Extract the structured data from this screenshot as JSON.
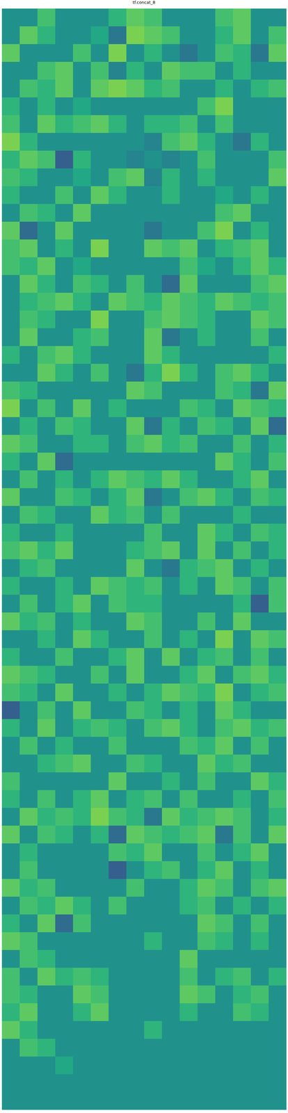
{
  "chart_data": {
    "type": "heatmap",
    "title": "tf.concat_8",
    "color": "viridis",
    "tick_labels": false,
    "value_range": [
      -1,
      1
    ],
    "cells": [
      [
        0,
        0,
        0.4,
        0,
        0,
        0,
        0.3,
        0.5,
        0.4,
        0,
        0,
        0,
        0.4,
        0.5,
        0,
        0
      ],
      [
        0,
        0.5,
        0.3,
        0,
        0,
        0.2,
        -0.2,
        0.6,
        0.5,
        0.4,
        0,
        0,
        0.3,
        0.5,
        0,
        0.4
      ],
      [
        0.5,
        0,
        0,
        0,
        0.4,
        0,
        0.6,
        0,
        0.3,
        0,
        -0.2,
        0,
        0.4,
        0.3,
        -0.2,
        0.5
      ],
      [
        0,
        0,
        0.4,
        0.5,
        0,
        0.4,
        -0.1,
        0.3,
        0,
        0.5,
        0.4,
        0.4,
        0,
        0.3,
        0,
        0
      ],
      [
        0,
        0.4,
        0.3,
        0.5,
        0,
        0.5,
        0.6,
        0.5,
        0.3,
        0.4,
        0,
        0,
        0.3,
        0,
        0.3,
        0.4
      ],
      [
        0.3,
        0,
        0.3,
        0,
        0.2,
        0,
        0,
        0,
        0,
        0,
        0,
        0.4,
        0.6,
        0,
        0,
        0
      ],
      [
        0.4,
        0,
        0.5,
        0.3,
        0.4,
        0.5,
        0.3,
        0,
        0.3,
        0.3,
        0.4,
        0,
        0.4,
        0,
        0,
        0
      ],
      [
        0.6,
        0.3,
        0,
        0,
        0,
        0,
        0,
        0,
        -0.1,
        0.4,
        0.5,
        0.3,
        0,
        -0.2,
        0.3,
        0
      ],
      [
        0.3,
        0.5,
        0.4,
        -0.4,
        0.3,
        0,
        0,
        -0.1,
        0,
        -0.1,
        0,
        0.4,
        0,
        0,
        0,
        0.4
      ],
      [
        0.4,
        0.3,
        0,
        0,
        0.2,
        0,
        0.4,
        0.5,
        -0.1,
        0.3,
        0,
        0.3,
        0,
        0,
        0,
        0.5
      ],
      [
        0.3,
        0,
        0,
        0.4,
        0,
        0.5,
        0.3,
        0,
        0,
        0.3,
        0,
        0,
        0.2,
        0,
        0.3,
        0
      ],
      [
        0,
        0.4,
        0.3,
        0,
        0.5,
        0,
        0,
        0,
        0,
        0,
        0,
        0,
        0.4,
        0.5,
        0,
        0
      ],
      [
        0.5,
        -0.3,
        0,
        0.5,
        0,
        0,
        0,
        0,
        -0.2,
        0,
        0,
        0.4,
        0.6,
        0,
        0.3,
        0
      ],
      [
        0.4,
        0.5,
        0,
        0.3,
        0,
        0.6,
        0,
        0,
        0.5,
        0.4,
        0.5,
        0,
        0.3,
        0.4,
        0.5,
        0
      ],
      [
        0.4,
        0.3,
        0.5,
        0,
        0.2,
        0,
        0,
        0,
        0,
        0,
        0.4,
        0.2,
        0,
        0.3,
        0.5,
        0.3
      ],
      [
        0,
        0.5,
        0.3,
        0,
        0.4,
        0.3,
        0,
        0.4,
        0,
        -0.3,
        0.5,
        0,
        0,
        0,
        0.4,
        0.5
      ],
      [
        0,
        0.3,
        0.4,
        0.5,
        0.3,
        0,
        0.5,
        0.4,
        0.3,
        0.5,
        0.4,
        0.3,
        0.5,
        0.4,
        0.3,
        0.4
      ],
      [
        0,
        0.4,
        0.3,
        0,
        0,
        0.6,
        0,
        0,
        0.4,
        0.5,
        0.4,
        0.3,
        0,
        0,
        0.5,
        0.4
      ],
      [
        0,
        0.5,
        0,
        0,
        0.3,
        0.4,
        0,
        0,
        0.5,
        -0.2,
        0,
        0.3,
        0,
        0,
        0.4,
        0
      ],
      [
        0.3,
        0,
        0.4,
        0.5,
        0.3,
        0,
        0,
        0,
        0.5,
        0.3,
        0,
        0,
        0,
        0,
        0,
        0.3
      ],
      [
        0,
        0,
        0.5,
        0.3,
        0,
        0.4,
        0,
        -0.2,
        0.3,
        0.6,
        0.3,
        0,
        0.4,
        0.5,
        0.3,
        0
      ],
      [
        0.4,
        0.3,
        0,
        0,
        0,
        0,
        0,
        0.5,
        0.4,
        0,
        0,
        0,
        0.4,
        0.3,
        -0.2,
        0.5
      ],
      [
        0.6,
        0,
        0.4,
        0,
        0.5,
        0,
        0.3,
        0,
        0,
        0,
        0.4,
        0.3,
        0,
        0.5,
        0.4,
        0.3
      ],
      [
        0,
        0.3,
        0,
        0.4,
        0.3,
        0,
        0,
        0.5,
        -0.2,
        0.3,
        0,
        0.4,
        0.3,
        0,
        0.5,
        -0.3
      ],
      [
        0.5,
        0.4,
        0,
        0,
        0.3,
        0.3,
        0,
        0.4,
        0.5,
        0.3,
        0.4,
        0,
        0,
        0.4,
        0,
        0.3
      ],
      [
        0.3,
        0,
        0.5,
        -0.3,
        0,
        0,
        0,
        0,
        0,
        0,
        0,
        0,
        0.5,
        0.3,
        0,
        0.4
      ],
      [
        0,
        0.4,
        0,
        0.3,
        0,
        0.3,
        0.5,
        0.4,
        0.3,
        0.5,
        0.3,
        0,
        0,
        0.3,
        0.5,
        0
      ],
      [
        0.5,
        0,
        0,
        0.4,
        0.3,
        0,
        0.3,
        0.5,
        -0.2,
        0,
        0.4,
        0.5,
        0.3,
        0,
        0.4,
        0.3
      ],
      [
        0,
        0.4,
        0.3,
        0,
        0,
        0.5,
        0.3,
        0.4,
        0,
        0.4,
        0,
        0,
        0,
        0.3,
        0,
        0
      ],
      [
        0.3,
        0,
        0,
        0.3,
        0,
        0,
        0,
        0,
        0.4,
        0,
        0,
        0.5,
        0.3,
        0,
        0.4,
        0.3
      ],
      [
        0.4,
        0.5,
        0.3,
        0.5,
        0,
        0,
        0,
        0.3,
        0.4,
        0.5,
        0,
        0.5,
        0,
        0.4,
        0,
        0.3
      ],
      [
        0,
        0.3,
        0.4,
        0,
        0,
        0,
        0,
        0.5,
        0,
        -0.2,
        0.3,
        0.4,
        0.5,
        0,
        0.3,
        0
      ],
      [
        0.3,
        0,
        0,
        0.3,
        0,
        0.5,
        0.4,
        0.3,
        0.4,
        0,
        0.3,
        0,
        0.5,
        0.4,
        0,
        0.4
      ],
      [
        0,
        0.4,
        0,
        0.3,
        0.5,
        0,
        0.4,
        0.3,
        0.3,
        0,
        0,
        0,
        0,
        0.3,
        -0.4,
        0.4
      ],
      [
        0.5,
        0.3,
        0.4,
        0,
        0.3,
        0,
        0,
        0.5,
        0.4,
        0,
        0,
        0.4,
        0,
        0.5,
        0,
        0
      ],
      [
        0,
        0,
        0.3,
        0,
        0.5,
        0.3,
        0,
        0,
        0.4,
        0,
        0.3,
        0,
        0.6,
        0,
        0.5,
        0.4
      ],
      [
        0.3,
        0,
        0,
        0.4,
        0,
        0,
        0.3,
        0.5,
        0,
        0.5,
        0,
        0.3,
        0.4,
        0,
        0.4,
        0
      ],
      [
        0.5,
        0.4,
        0.3,
        0,
        0,
        0.4,
        0,
        0.5,
        0,
        0,
        0.3,
        0.5,
        0,
        0.4,
        0.5,
        0.3
      ],
      [
        0.4,
        0.3,
        0,
        0.5,
        0,
        0,
        0.3,
        0,
        0.3,
        0.5,
        0.4,
        0.3,
        0.6,
        0,
        0.3,
        0.4
      ],
      [
        -0.4,
        0,
        0.4,
        0,
        0.5,
        0,
        0,
        0.4,
        0.3,
        0,
        0.3,
        0,
        0.5,
        0.3,
        0,
        0
      ],
      [
        0.3,
        0,
        0.5,
        0,
        0.3,
        0.4,
        0.3,
        0,
        0.4,
        0.5,
        0.3,
        0,
        0.4,
        0.5,
        0.3,
        0.4
      ],
      [
        0,
        0.4,
        0,
        0.3,
        0,
        0,
        0.4,
        0,
        0,
        0,
        0.4,
        0.3,
        0.5,
        0,
        0.4,
        0
      ],
      [
        0,
        0,
        0.3,
        0.4,
        0.5,
        0,
        0,
        0.4,
        0.3,
        0,
        0,
        0.5,
        0.3,
        0.4,
        0,
        0
      ],
      [
        0.4,
        0,
        0,
        0,
        0,
        0,
        0.5,
        0,
        0,
        0.3,
        0,
        0.4,
        0,
        0,
        0.5,
        0.3
      ],
      [
        0.3,
        0,
        0.4,
        0,
        0.3,
        0.5,
        0,
        0.3,
        0.4,
        0,
        0.4,
        0,
        0,
        0.3,
        0,
        0.4
      ],
      [
        0,
        0.5,
        0.3,
        0.4,
        0.3,
        0.6,
        0.4,
        0.3,
        -0.2,
        0.5,
        0.3,
        0.4,
        0.5,
        0.4,
        0,
        0.3
      ],
      [
        0.5,
        0,
        0.4,
        0.3,
        0,
        0.3,
        -0.3,
        0.5,
        0.4,
        0.3,
        0.4,
        0.5,
        -0.2,
        0.4,
        0,
        0.5
      ],
      [
        0,
        0.3,
        0,
        0,
        0,
        0,
        0.4,
        0.3,
        0.5,
        0,
        0,
        0.4,
        0,
        0.3,
        0.5,
        0
      ],
      [
        0,
        0.4,
        0,
        0,
        0,
        0,
        -0.4,
        0,
        0.3,
        0.4,
        0,
        0.3,
        0.5,
        0,
        0.3,
        0
      ],
      [
        0.5,
        0.3,
        0.4,
        0,
        0,
        0,
        0,
        0.4,
        0,
        0,
        0.3,
        0.5,
        0.4,
        0,
        0.4,
        0.5
      ],
      [
        0,
        0.4,
        0.3,
        0.5,
        0.3,
        0,
        0.4,
        0,
        0,
        0,
        0.3,
        0.4,
        0,
        0.3,
        0,
        0.3
      ],
      [
        0.3,
        0,
        0.5,
        -0.3,
        0.4,
        0,
        0,
        0,
        0,
        0,
        0,
        0.5,
        0.4,
        0,
        0.4,
        0
      ],
      [
        0.5,
        0.4,
        0,
        0,
        0,
        0,
        0,
        0,
        0.3,
        0,
        0,
        0.4,
        0.3,
        0,
        0.3,
        0
      ],
      [
        0,
        0.4,
        0.3,
        0,
        0,
        0,
        0,
        0,
        0,
        0,
        0.5,
        0,
        0,
        0,
        0,
        0
      ],
      [
        0.4,
        0,
        0.5,
        0.3,
        0.4,
        0.3,
        0,
        0,
        0,
        0,
        0.4,
        0,
        0.3,
        0.4,
        0,
        0.3
      ],
      [
        0.4,
        0.3,
        0,
        0,
        0.5,
        0.4,
        0,
        0,
        0,
        0,
        0.5,
        0.4,
        0,
        0.3,
        0.4,
        0
      ],
      [
        0.3,
        0.5,
        0,
        0,
        0.3,
        0.5,
        0,
        0,
        0,
        0,
        0.3,
        0,
        0,
        0.4,
        0.3,
        0
      ],
      [
        0.5,
        0.3,
        0,
        0,
        0,
        0,
        0,
        0,
        0.3,
        0,
        0,
        0,
        0,
        0,
        0,
        0
      ],
      [
        0,
        0.4,
        0.3,
        0,
        0,
        0,
        0,
        0,
        0,
        0,
        0,
        0,
        0,
        0,
        0,
        0
      ],
      [
        0,
        0,
        0,
        0.2,
        0,
        0,
        0,
        0,
        0,
        0,
        0,
        0,
        0,
        0,
        0,
        0
      ],
      [
        0,
        0,
        0,
        0,
        0,
        0,
        0,
        0,
        0,
        0,
        0,
        0,
        0,
        0,
        0,
        0
      ],
      [
        0,
        0,
        0,
        0,
        0,
        0,
        0,
        0,
        0,
        0,
        0,
        0,
        0,
        0,
        0,
        0
      ]
    ]
  }
}
